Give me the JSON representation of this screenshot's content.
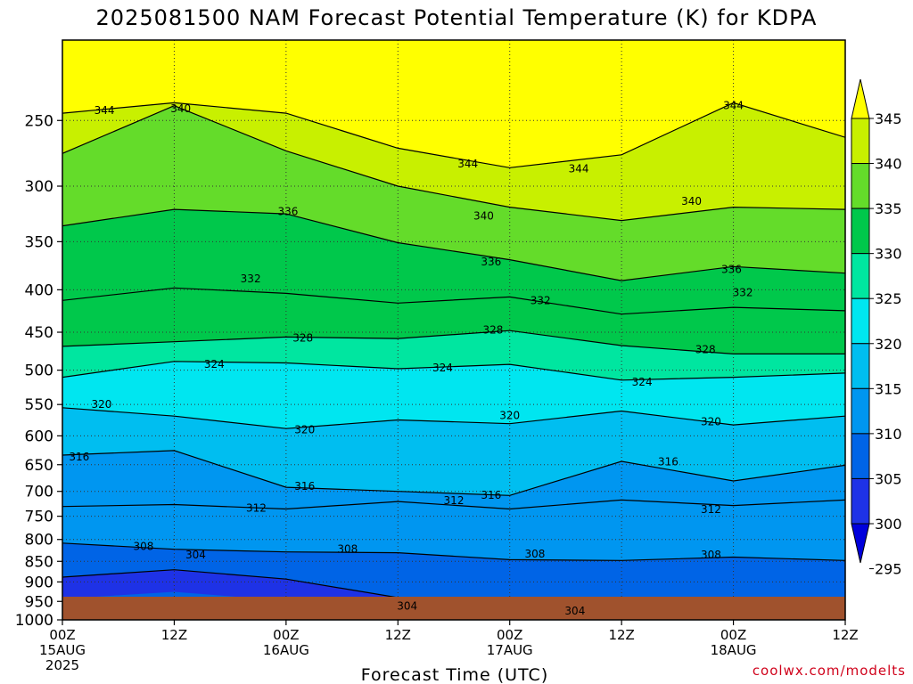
{
  "chart_data": {
    "type": "heatmap",
    "title": "2025081500 NAM Forecast Potential Temperature (K) for KDPA",
    "xlabel": "Forecast Time (UTC)",
    "ylabel": "",
    "x_ticks": [
      {
        "hour": 0,
        "label": "00Z",
        "sub1": "15AUG",
        "sub2": "2025"
      },
      {
        "hour": 12,
        "label": "12Z",
        "sub1": "",
        "sub2": ""
      },
      {
        "hour": 24,
        "label": "00Z",
        "sub1": "16AUG",
        "sub2": ""
      },
      {
        "hour": 36,
        "label": "12Z",
        "sub1": "",
        "sub2": ""
      },
      {
        "hour": 48,
        "label": "00Z",
        "sub1": "17AUG",
        "sub2": ""
      },
      {
        "hour": 60,
        "label": "12Z",
        "sub1": "",
        "sub2": ""
      },
      {
        "hour": 72,
        "label": "00Z",
        "sub1": "18AUG",
        "sub2": ""
      },
      {
        "hour": 84,
        "label": "12Z",
        "sub1": "",
        "sub2": ""
      }
    ],
    "xlim": [
      0,
      84
    ],
    "y_scale": "log",
    "ylim": [
      1000,
      200
    ],
    "y_ticks": [
      250,
      300,
      350,
      400,
      450,
      500,
      550,
      600,
      650,
      700,
      750,
      800,
      850,
      900,
      950,
      1000
    ],
    "grid": true,
    "colorbar": {
      "ticks": [
        345,
        340,
        335,
        330,
        325,
        320,
        315,
        310,
        305,
        300,
        295
      ],
      "bands": [
        {
          "min": 345,
          "color": "#ffff00"
        },
        {
          "min": 340,
          "color": "#c8f000"
        },
        {
          "min": 335,
          "color": "#64dc2a"
        },
        {
          "min": 330,
          "color": "#00c84b"
        },
        {
          "min": 325,
          "color": "#00e6a0"
        },
        {
          "min": 320,
          "color": "#00e6f0"
        },
        {
          "min": 315,
          "color": "#00bef0"
        },
        {
          "min": 310,
          "color": "#0096f0"
        },
        {
          "min": 305,
          "color": "#0064e6"
        },
        {
          "min": 300,
          "color": "#1e32e6"
        },
        {
          "min": 295,
          "color": "#0000dc"
        }
      ]
    },
    "series": [
      {
        "values": [
          [
            0,
            998
          ],
          [
            12,
            999
          ],
          [
            24,
            999
          ],
          [
            36,
            998
          ],
          [
            48,
            997
          ],
          [
            60,
            998
          ],
          [
            72,
            998
          ],
          [
            84,
            999
          ]
        ]
      },
      {
        "level": 304,
        "values": [
          [
            0,
            888
          ],
          [
            12,
            870
          ],
          [
            24,
            893
          ],
          [
            36,
            940
          ],
          [
            48,
            955
          ],
          [
            60,
            953
          ],
          [
            72,
            945
          ],
          [
            84,
            952
          ]
        ]
      },
      {
        "level": 308,
        "values": [
          [
            0,
            808
          ],
          [
            12,
            822
          ],
          [
            24,
            828
          ],
          [
            36,
            830
          ],
          [
            48,
            846
          ],
          [
            60,
            848
          ],
          [
            72,
            840
          ],
          [
            84,
            848
          ]
        ]
      },
      {
        "level": 312,
        "values": [
          [
            0,
            730
          ],
          [
            12,
            726
          ],
          [
            24,
            735
          ],
          [
            36,
            720
          ],
          [
            48,
            735
          ],
          [
            60,
            717
          ],
          [
            72,
            728
          ],
          [
            84,
            717
          ]
        ]
      },
      {
        "level": 316,
        "values": [
          [
            0,
            633
          ],
          [
            12,
            625
          ],
          [
            24,
            692
          ],
          [
            36,
            700
          ],
          [
            48,
            708
          ],
          [
            60,
            644
          ],
          [
            72,
            680
          ],
          [
            84,
            651
          ]
        ]
      },
      {
        "level": 320,
        "values": [
          [
            0,
            555
          ],
          [
            12,
            568
          ],
          [
            24,
            588
          ],
          [
            36,
            574
          ],
          [
            48,
            580
          ],
          [
            60,
            560
          ],
          [
            72,
            582
          ],
          [
            84,
            568
          ]
        ]
      },
      {
        "level": 324,
        "values": [
          [
            0,
            510
          ],
          [
            12,
            488
          ],
          [
            24,
            490
          ],
          [
            36,
            498
          ],
          [
            48,
            492
          ],
          [
            60,
            514
          ],
          [
            72,
            510
          ],
          [
            84,
            504
          ]
        ]
      },
      {
        "level": 328,
        "values": [
          [
            0,
            468
          ],
          [
            12,
            462
          ],
          [
            24,
            456
          ],
          [
            36,
            458
          ],
          [
            48,
            448
          ],
          [
            60,
            467
          ],
          [
            72,
            478
          ],
          [
            84,
            478
          ]
        ]
      },
      {
        "level": 332,
        "values": [
          [
            0,
            412
          ],
          [
            12,
            398
          ],
          [
            24,
            404
          ],
          [
            36,
            415
          ],
          [
            48,
            408
          ],
          [
            60,
            428
          ],
          [
            72,
            420
          ],
          [
            84,
            424
          ]
        ]
      },
      {
        "level": 336,
        "values": [
          [
            0,
            335
          ],
          [
            12,
            320
          ],
          [
            24,
            324
          ],
          [
            36,
            351
          ],
          [
            48,
            368
          ],
          [
            60,
            390
          ],
          [
            72,
            375
          ],
          [
            84,
            382
          ]
        ]
      },
      {
        "level": 340,
        "values": [
          [
            0,
            274
          ],
          [
            12,
            240
          ],
          [
            24,
            272
          ],
          [
            36,
            300
          ],
          [
            48,
            318
          ],
          [
            60,
            330
          ],
          [
            72,
            318
          ],
          [
            84,
            320
          ]
        ]
      },
      {
        "level": 344,
        "values": [
          [
            0,
            245
          ],
          [
            12,
            238
          ],
          [
            24,
            245
          ],
          [
            36,
            270
          ],
          [
            48,
            285
          ],
          [
            60,
            275
          ],
          [
            72,
            238
          ],
          [
            84,
            262
          ]
        ]
      }
    ],
    "contour_labels": [
      {
        "text": "344",
        "x": 4.5,
        "p": 243
      },
      {
        "text": "340",
        "x": 12.7,
        "p": 242
      },
      {
        "text": "336",
        "x": 24.2,
        "p": 322
      },
      {
        "text": "332",
        "x": 20.2,
        "p": 388
      },
      {
        "text": "328",
        "x": 25.8,
        "p": 457
      },
      {
        "text": "324",
        "x": 16.3,
        "p": 492
      },
      {
        "text": "320",
        "x": 4.2,
        "p": 550
      },
      {
        "text": "316",
        "x": 1.8,
        "p": 636
      },
      {
        "text": "320",
        "x": 26.0,
        "p": 590
      },
      {
        "text": "316",
        "x": 26.0,
        "p": 690
      },
      {
        "text": "312",
        "x": 20.8,
        "p": 733
      },
      {
        "text": "308",
        "x": 8.7,
        "p": 815
      },
      {
        "text": "304",
        "x": 14.3,
        "p": 835
      },
      {
        "text": "308",
        "x": 30.6,
        "p": 822
      },
      {
        "text": "304",
        "x": 37.0,
        "p": 962
      },
      {
        "text": "344",
        "x": 43.5,
        "p": 282
      },
      {
        "text": "340",
        "x": 45.2,
        "p": 326
      },
      {
        "text": "336",
        "x": 46.0,
        "p": 370
      },
      {
        "text": "332",
        "x": 51.3,
        "p": 412
      },
      {
        "text": "328",
        "x": 46.2,
        "p": 447
      },
      {
        "text": "324",
        "x": 40.8,
        "p": 497
      },
      {
        "text": "320",
        "x": 48.0,
        "p": 567
      },
      {
        "text": "316",
        "x": 46.0,
        "p": 707
      },
      {
        "text": "312",
        "x": 42.0,
        "p": 718
      },
      {
        "text": "308",
        "x": 50.7,
        "p": 833
      },
      {
        "text": "304",
        "x": 55.0,
        "p": 975
      },
      {
        "text": "344",
        "x": 55.4,
        "p": 286
      },
      {
        "text": "340",
        "x": 67.5,
        "p": 313
      },
      {
        "text": "336",
        "x": 71.8,
        "p": 378
      },
      {
        "text": "332",
        "x": 73.0,
        "p": 403
      },
      {
        "text": "328",
        "x": 69.0,
        "p": 472
      },
      {
        "text": "324",
        "x": 62.2,
        "p": 517
      },
      {
        "text": "320",
        "x": 69.6,
        "p": 577
      },
      {
        "text": "316",
        "x": 65.0,
        "p": 645
      },
      {
        "text": "312",
        "x": 69.6,
        "p": 736
      },
      {
        "text": "308",
        "x": 69.6,
        "p": 835
      },
      {
        "text": "344",
        "x": 72.0,
        "p": 240
      }
    ],
    "credit": "coolwx.com/modelts"
  }
}
